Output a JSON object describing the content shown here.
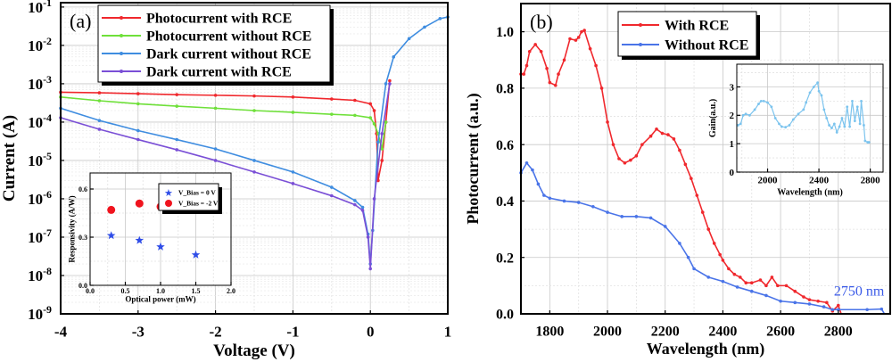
{
  "chart_data": [
    {
      "id": "a",
      "type": "line",
      "panel_label": "(a)",
      "xlabel": "Voltage (V)",
      "ylabel": "Current (A)",
      "xlim": [
        -4,
        1
      ],
      "ylim": [
        1e-09,
        0.13
      ],
      "yscale": "log",
      "grid": true,
      "legend_position": "top-left",
      "x_ticks": [
        "-4",
        "-3",
        "-2",
        "-1",
        "0",
        "1"
      ],
      "y_ticks": [
        "10-9",
        "10-8",
        "10-7",
        "10-6",
        "10-5",
        "10-4",
        "10-3",
        "10-2",
        "10-1"
      ],
      "series": [
        {
          "name": "Photocurrent with RCE",
          "color": "#f0282d",
          "x": [
            -4,
            -3.5,
            -3,
            -2.5,
            -2,
            -1.5,
            -1,
            -0.5,
            -0.2,
            0,
            0.05,
            0.08,
            0.1,
            0.15,
            0.2,
            0.25
          ],
          "y": [
            0.0006,
            0.00058,
            0.00055,
            0.00052,
            0.0005,
            0.00048,
            0.00045,
            0.0004,
            0.00037,
            0.0003,
            0.0002,
            5e-05,
            3e-06,
            1e-05,
            0.0001,
            0.0012
          ]
        },
        {
          "name": "Photocurrent without RCE",
          "color": "#6fe03a",
          "x": [
            -4,
            -3.5,
            -3,
            -2.5,
            -2,
            -1.5,
            -1,
            -0.5,
            -0.2,
            0,
            0.05,
            0.1,
            0.15,
            0.2
          ],
          "y": [
            0.00045,
            0.00036,
            0.0003,
            0.00026,
            0.00023,
            0.0002,
            0.00018,
            0.00016,
            0.00015,
            0.00013,
            9e-05,
            5e-05,
            2e-05,
            0.0001
          ]
        },
        {
          "name": "Dark current without RCE",
          "color": "#3f8de0",
          "x": [
            -4,
            -3.5,
            -3,
            -2.5,
            -2,
            -1.5,
            -1,
            -0.5,
            -0.2,
            -0.1,
            -0.03,
            0,
            0.03,
            0.1,
            0.2,
            0.3,
            0.5,
            0.7,
            0.9,
            1
          ],
          "y": [
            0.00023,
            0.00011,
            6e-05,
            3.5e-05,
            2e-05,
            1e-05,
            5e-06,
            2e-06,
            9e-07,
            6e-07,
            1.2e-07,
            2e-08,
            1.5e-07,
            3e-05,
            0.001,
            0.005,
            0.015,
            0.03,
            0.05,
            0.055
          ]
        },
        {
          "name": "Dark current with RCE",
          "color": "#7a4fd6",
          "x": [
            -4,
            -3.5,
            -3,
            -2.5,
            -2,
            -1.5,
            -1,
            -0.5,
            -0.2,
            -0.1,
            -0.03,
            0,
            0.05,
            0.15,
            0.25
          ],
          "y": [
            0.00013,
            6.5e-05,
            3.5e-05,
            1.9e-05,
            1e-05,
            5e-06,
            2.5e-06,
            1.2e-06,
            7e-07,
            5e-07,
            1e-07,
            1.5e-08,
            1e-06,
            5e-05,
            0.001
          ]
        }
      ]
    },
    {
      "id": "a-inset",
      "type": "scatter",
      "xlabel": "Optical power (mW)",
      "ylabel": "Responsivity (A/W)",
      "xlim": [
        0,
        2
      ],
      "ylim": [
        0,
        0.7
      ],
      "grid": true,
      "legend_position": "top-right",
      "x_ticks": [
        "0.0",
        "0.5",
        "1.0",
        "1.5",
        "2.0"
      ],
      "y_ticks": [
        "0.0",
        "0.3",
        "0.6"
      ],
      "series": [
        {
          "name": "V_Bias = 0 V",
          "color": "#2f4de8",
          "marker": "star",
          "x": [
            0.3,
            0.7,
            1.0,
            1.5
          ],
          "y": [
            0.31,
            0.28,
            0.24,
            0.19
          ]
        },
        {
          "name": "V_Bias = -2 V",
          "color": "#f0141e",
          "marker": "circle",
          "x": [
            0.3,
            0.7,
            1.0,
            1.5
          ],
          "y": [
            0.47,
            0.51,
            0.49,
            0.48
          ]
        }
      ]
    },
    {
      "id": "b",
      "type": "line",
      "panel_label": "(b)",
      "xlabel": "Wavelength  (nm)",
      "ylabel": "Photocurrent (a.u.)",
      "xlim": [
        1700,
        2980
      ],
      "ylim": [
        0,
        1.1
      ],
      "grid": true,
      "legend_position": "top-center",
      "x_ticks": [
        "1800",
        "2000",
        "2200",
        "2400",
        "2600",
        "2800"
      ],
      "y_ticks": [
        "0.0",
        "0.2",
        "0.4",
        "0.6",
        "0.8",
        "1.0"
      ],
      "annotation": {
        "text": "2750 nm",
        "color": "#3a5ae8"
      },
      "series": [
        {
          "name": "With RCE",
          "color": "#f0282d",
          "x": [
            1700,
            1710,
            1720,
            1730,
            1750,
            1770,
            1790,
            1800,
            1820,
            1830,
            1850,
            1870,
            1890,
            1900,
            1910,
            1920,
            1940,
            1960,
            1980,
            2000,
            2020,
            2040,
            2060,
            2080,
            2100,
            2120,
            2150,
            2170,
            2190,
            2210,
            2230,
            2250,
            2270,
            2290,
            2310,
            2330,
            2350,
            2370,
            2390,
            2400,
            2420,
            2440,
            2460,
            2480,
            2500,
            2530,
            2550,
            2570,
            2590,
            2620,
            2650,
            2680,
            2700,
            2730,
            2760,
            2780,
            2800,
            2810,
            2980
          ],
          "y": [
            0.85,
            0.85,
            0.88,
            0.93,
            0.955,
            0.93,
            0.87,
            0.82,
            0.81,
            0.85,
            0.9,
            0.975,
            0.97,
            0.98,
            1.0,
            1.005,
            0.94,
            0.88,
            0.8,
            0.68,
            0.6,
            0.55,
            0.535,
            0.545,
            0.56,
            0.6,
            0.63,
            0.655,
            0.64,
            0.635,
            0.62,
            0.58,
            0.53,
            0.48,
            0.42,
            0.36,
            0.3,
            0.25,
            0.21,
            0.19,
            0.16,
            0.14,
            0.13,
            0.11,
            0.11,
            0.12,
            0.1,
            0.13,
            0.1,
            0.1,
            0.08,
            0.06,
            0.05,
            0.045,
            0.04,
            0.01,
            0.03,
            0,
            0
          ]
        },
        {
          "name": "Without RCE",
          "color": "#4a74e8",
          "x": [
            1700,
            1720,
            1740,
            1760,
            1780,
            1800,
            1850,
            1900,
            1950,
            2000,
            2050,
            2100,
            2150,
            2200,
            2250,
            2280,
            2300,
            2350,
            2400,
            2450,
            2500,
            2550,
            2600,
            2650,
            2700,
            2750,
            2780,
            2800,
            2900,
            2950,
            2960,
            2980
          ],
          "y": [
            0.5,
            0.535,
            0.51,
            0.46,
            0.42,
            0.41,
            0.4,
            0.395,
            0.38,
            0.36,
            0.345,
            0.345,
            0.34,
            0.31,
            0.25,
            0.2,
            0.16,
            0.13,
            0.115,
            0.095,
            0.08,
            0.065,
            0.045,
            0.04,
            0.035,
            0.025,
            0.015,
            0.015,
            0.015,
            0.017,
            0,
            0
          ]
        }
      ]
    },
    {
      "id": "b-inset",
      "type": "line",
      "xlabel": "Wavelength (nm)",
      "ylabel": "Gain(a.u.)",
      "xlim": [
        1760,
        2900
      ],
      "ylim": [
        0,
        3.8
      ],
      "grid": true,
      "x_ticks": [
        "2000",
        "2400",
        "2800"
      ],
      "y_ticks": [
        "0",
        "1",
        "2",
        "3"
      ],
      "series": [
        {
          "color": "#7cc4ee",
          "x": [
            1770,
            1790,
            1810,
            1830,
            1860,
            1900,
            1930,
            1950,
            1970,
            2000,
            2030,
            2060,
            2090,
            2110,
            2140,
            2170,
            2200,
            2240,
            2280,
            2300,
            2330,
            2360,
            2390,
            2400,
            2420,
            2440,
            2460,
            2480,
            2500,
            2520,
            2540,
            2560,
            2580,
            2600,
            2620,
            2640,
            2660,
            2680,
            2700,
            2720,
            2730,
            2750,
            2760,
            2780,
            2790
          ],
          "y": [
            1.65,
            1.7,
            2.0,
            2.05,
            2.0,
            2.2,
            2.4,
            2.5,
            2.5,
            2.45,
            2.3,
            1.9,
            1.7,
            1.6,
            1.58,
            1.65,
            1.85,
            2.05,
            2.2,
            2.45,
            2.8,
            3.0,
            3.15,
            2.85,
            2.7,
            2.2,
            1.9,
            1.65,
            1.55,
            1.7,
            1.4,
            1.6,
            1.9,
            1.6,
            2.3,
            1.6,
            2.5,
            1.8,
            2.3,
            1.7,
            2.5,
            1.65,
            1.1,
            1.05,
            1.05
          ]
        }
      ]
    }
  ]
}
